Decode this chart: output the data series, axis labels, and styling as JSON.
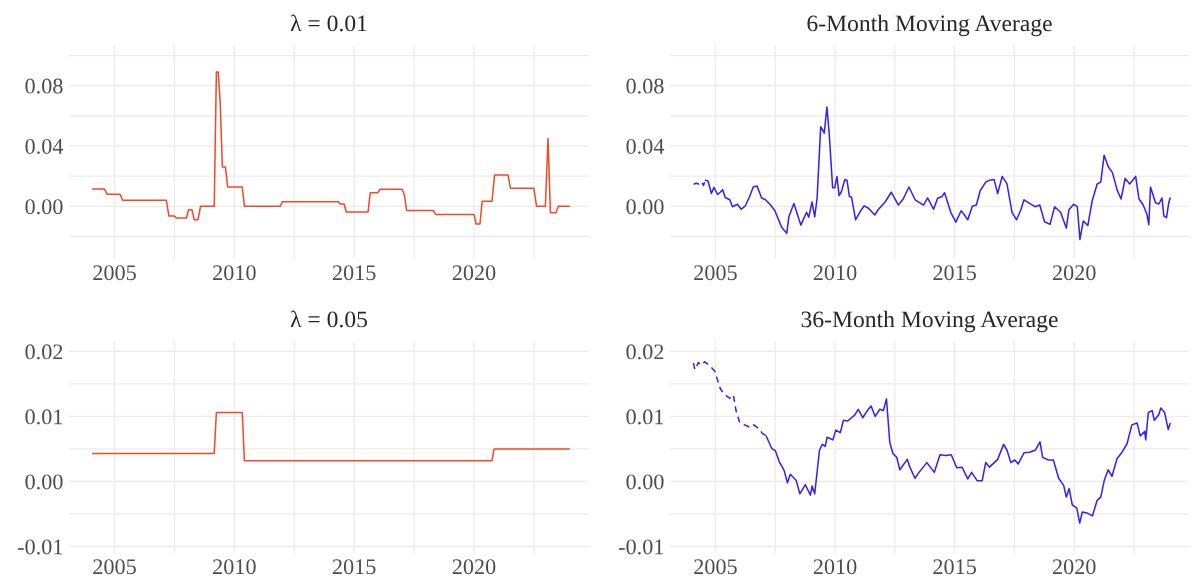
{
  "chart_data": [
    {
      "type": "line",
      "title": "λ = 0.01",
      "xlim": [
        2003.1,
        2024.8
      ],
      "ylim": [
        -0.035,
        0.107
      ],
      "grid": true,
      "xticks": [
        2005,
        {
          "value": 2007.5,
          "label": null
        },
        2010,
        {
          "value": 2012.5,
          "label": null
        },
        2015,
        {
          "value": 2017.5,
          "label": null
        },
        2020,
        {
          "value": 2022.5,
          "label": null
        }
      ],
      "yticks": [
        {
          "value": -0.02,
          "label": null
        },
        {
          "value": 0,
          "label": "0.00"
        },
        {
          "value": 0.02,
          "label": null
        },
        0.04,
        {
          "value": 0.06,
          "label": null
        },
        0.08,
        {
          "value": 0.1,
          "label": null
        }
      ],
      "series": [
        {
          "color": "#ee4b2b",
          "line_style": "solid",
          "x": [
            2004.09,
            2004.58,
            2004.69,
            2005.23,
            2005.34,
            2007.16,
            2007.27,
            2007.5,
            2007.58,
            2008.0,
            2008.09,
            2008.23,
            2008.33,
            2008.48,
            2008.59,
            2009.16,
            2009.25,
            2009.33,
            2009.41,
            2009.5,
            2009.63,
            2009.72,
            2010.33,
            2010.42,
            2011.92,
            2012.0,
            2014.34,
            2014.42,
            2014.58,
            2014.67,
            2015.58,
            2015.67,
            2015.98,
            2016.09,
            2017.0,
            2017.09,
            2017.19,
            2018.3,
            2018.41,
            2020.0,
            2020.09,
            2020.25,
            2020.34,
            2020.75,
            2020.86,
            2021.42,
            2021.52,
            2022.5,
            2022.61,
            2022.98,
            2023.09,
            2023.19,
            2023.42,
            2023.52,
            2023.98
          ],
          "values": [
            0.0115,
            0.0115,
            0.008,
            0.008,
            0.004,
            0.004,
            -0.0065,
            -0.0065,
            -0.0078,
            -0.0078,
            -0.0023,
            -0.0023,
            -0.009,
            -0.009,
            0,
            0,
            0.089,
            0.089,
            0.0685,
            0.026,
            0.026,
            0.0128,
            0.0128,
            0,
            0,
            0.003,
            0.003,
            0.0015,
            0.0015,
            -0.0038,
            -0.0038,
            0.009,
            0.009,
            0.0113,
            0.0113,
            0.008,
            -0.0028,
            -0.0028,
            -0.0055,
            -0.0055,
            -0.0118,
            -0.0118,
            0.0033,
            0.0033,
            0.0208,
            0.0208,
            0.012,
            0.012,
            0,
            0,
            0.045,
            -0.0043,
            -0.0043,
            0,
            0
          ]
        }
      ]
    },
    {
      "type": "line",
      "title": "6-Month Moving Average",
      "xlim": [
        2003.1,
        2024.8
      ],
      "ylim": [
        -0.035,
        0.107
      ],
      "grid": true,
      "xticks": [
        2005,
        {
          "value": 2007.5,
          "label": null
        },
        2010,
        {
          "value": 2012.5,
          "label": null
        },
        2015,
        {
          "value": 2017.5,
          "label": null
        },
        2020,
        {
          "value": 2022.5,
          "label": null
        }
      ],
      "yticks": [
        {
          "value": -0.02,
          "label": null
        },
        {
          "value": 0,
          "label": "0.00"
        },
        {
          "value": 0.02,
          "label": null
        },
        0.04,
        {
          "value": 0.06,
          "label": null
        },
        0.08,
        {
          "value": 0.1,
          "label": null
        }
      ],
      "series": [
        {
          "color": "#3b1ef5",
          "line_style": "solid",
          "x": [
            2004.58,
            2004.69,
            2004.83,
            2004.94,
            2005.09,
            2005.2,
            2005.3,
            2005.41,
            2005.6,
            2005.71,
            2005.92,
            2006.08,
            2006.25,
            2006.43,
            2006.58,
            2006.74,
            2006.93,
            2007.08,
            2007.27,
            2007.48,
            2007.77,
            2007.98,
            2008.07,
            2008.28,
            2008.57,
            2008.81,
            2008.9,
            2009.04,
            2009.15,
            2009.25,
            2009.4,
            2009.55,
            2009.66,
            2009.75,
            2009.9,
            2009.99,
            2010.08,
            2010.17,
            2010.27,
            2010.41,
            2010.5,
            2010.6,
            2010.69,
            2010.86,
            2011.05,
            2011.22,
            2011.41,
            2011.66,
            2011.82,
            2012.1,
            2012.35,
            2012.65,
            2012.85,
            2013.09,
            2013.35,
            2013.7,
            2013.87,
            2014.12,
            2014.29,
            2014.48,
            2014.58,
            2014.84,
            2015.05,
            2015.27,
            2015.39,
            2015.55,
            2015.74,
            2015.91,
            2016.07,
            2016.3,
            2016.46,
            2016.65,
            2016.8,
            2016.99,
            2017.19,
            2017.4,
            2017.59,
            2017.77,
            2017.9,
            2018.15,
            2018.37,
            2018.56,
            2018.76,
            2018.99,
            2019.18,
            2019.43,
            2019.67,
            2019.78,
            2019.98,
            2020.13,
            2020.24,
            2020.38,
            2020.57,
            2020.75,
            2020.96,
            2021.11,
            2021.25,
            2021.43,
            2021.6,
            2021.79,
            2021.96,
            2022.13,
            2022.32,
            2022.57,
            2022.71,
            2022.88,
            2023.04,
            2023.12,
            2023.19,
            2023.4,
            2023.54,
            2023.67,
            2023.75,
            2023.86,
            2023.95,
            2024.01
          ],
          "values": [
            0.0173,
            0.0168,
            0.0085,
            0.0125,
            0.0078,
            0.0093,
            0.011,
            0.0058,
            0.0043,
            -0.0003,
            0.0013,
            -0.002,
            0.0003,
            0.0065,
            0.0128,
            0.0135,
            0.0055,
            0.0045,
            0.0015,
            -0.0028,
            -0.014,
            -0.018,
            -0.007,
            0.0018,
            -0.0125,
            -0.004,
            -0.0073,
            0.0028,
            -0.007,
            0.0053,
            0.0528,
            0.0485,
            0.0658,
            0.0498,
            0.0123,
            0.0123,
            0.0198,
            0.007,
            0.0098,
            0.0178,
            0.0173,
            0.0065,
            0.006,
            -0.009,
            -0.0035,
            0.0003,
            -0.0015,
            -0.0058,
            -0.002,
            0.003,
            0.0093,
            0.0008,
            0.0048,
            0.0128,
            0.0043,
            0.0008,
            0.0055,
            -0.002,
            0.0053,
            0.0065,
            0.009,
            -0.004,
            -0.0105,
            -0.003,
            -0.0053,
            -0.009,
            0,
            0.0008,
            0.0103,
            0.016,
            0.0173,
            0.0178,
            0.0085,
            0.0198,
            0.0148,
            -0.004,
            -0.009,
            -0.0023,
            0.0043,
            0.0018,
            -0.0003,
            0.0008,
            -0.0103,
            -0.012,
            -0.0003,
            -0.004,
            -0.0145,
            -0.0023,
            0.0013,
            -0.0003,
            -0.022,
            -0.0098,
            -0.0128,
            0.0035,
            0.0148,
            0.016,
            0.0338,
            0.026,
            0.0223,
            0.011,
            0.0048,
            0.0185,
            0.0148,
            0.0198,
            0.0048,
            0.001,
            -0.0053,
            -0.0123,
            0.0128,
            0.0023,
            0.0015,
            0.0055,
            -0.0065,
            -0.0075,
            0.002,
            0.0055
          ]
        },
        {
          "color": "#3b1ef5",
          "line_style": "dashed",
          "x": [
            2004.08,
            2004.19,
            2004.3,
            2004.42,
            2004.5,
            2004.58
          ],
          "values": [
            0.0145,
            0.0153,
            0.0148,
            0.0163,
            0.0138,
            0.0173
          ]
        }
      ]
    },
    {
      "type": "line",
      "title": "λ = 0.05",
      "xlim": [
        2003.1,
        2024.8
      ],
      "ylim": [
        -0.011,
        0.0216
      ],
      "grid": true,
      "xticks": [
        2005,
        {
          "value": 2007.5,
          "label": null
        },
        2010,
        {
          "value": 2012.5,
          "label": null
        },
        2015,
        {
          "value": 2017.5,
          "label": null
        },
        2020,
        {
          "value": 2022.5,
          "label": null
        }
      ],
      "yticks": [
        -0.01,
        {
          "value": -0.005,
          "label": null
        },
        {
          "value": 0,
          "label": "0.00"
        },
        {
          "value": 0.005,
          "label": null
        },
        0.01,
        {
          "value": 0.015,
          "label": null
        },
        0.02
      ],
      "series": [
        {
          "color": "#ee4b2b",
          "line_style": "solid",
          "x": [
            2004.09,
            2009.16,
            2009.25,
            2010.33,
            2010.42,
            2020.75,
            2020.84,
            2023.98
          ],
          "values": [
            0.0043,
            0.0043,
            0.0106,
            0.0106,
            0.0032,
            0.0032,
            0.005,
            0.005
          ]
        }
      ]
    },
    {
      "type": "line",
      "title": "36-Month Moving Average",
      "xlim": [
        2003.1,
        2024.8
      ],
      "ylim": [
        -0.011,
        0.0216
      ],
      "grid": true,
      "xticks": [
        2005,
        {
          "value": 2007.5,
          "label": null
        },
        2010,
        {
          "value": 2012.5,
          "label": null
        },
        2015,
        {
          "value": 2017.5,
          "label": null
        },
        2020,
        {
          "value": 2022.5,
          "label": null
        }
      ],
      "yticks": [
        -0.01,
        {
          "value": -0.005,
          "label": null
        },
        {
          "value": 0,
          "label": "0.00"
        },
        {
          "value": 0.005,
          "label": null
        },
        0.01,
        {
          "value": 0.015,
          "label": null
        },
        0.02
      ],
      "series": [
        {
          "color": "#3b1ef5",
          "line_style": "dashed",
          "x": [
            2004.08,
            2004.14,
            2004.29,
            2004.39,
            2004.55,
            2004.76,
            2004.97,
            2005.2,
            2005.36,
            2005.6,
            2005.75,
            2005.86,
            2006.02,
            2006.22,
            2006.46,
            2006.61,
            2006.85,
            2006.96,
            2007.12
          ],
          "values": [
            0.0182,
            0.0172,
            0.0183,
            0.0179,
            0.0184,
            0.0178,
            0.017,
            0.0143,
            0.0134,
            0.0128,
            0.0133,
            0.0109,
            0.009,
            0.0087,
            0.0083,
            0.0087,
            0.008,
            0.0074,
            0.007
          ]
        },
        {
          "color": "#3b1ef5",
          "line_style": "solid",
          "x": [
            2007.12,
            2007.35,
            2007.51,
            2007.66,
            2007.87,
            2008.01,
            2008.13,
            2008.37,
            2008.53,
            2008.76,
            2008.97,
            2009.04,
            2009.15,
            2009.35,
            2009.47,
            2009.59,
            2009.67,
            2009.91,
            2010.03,
            2010.22,
            2010.35,
            2010.53,
            2010.82,
            2010.97,
            2011.16,
            2011.35,
            2011.51,
            2011.68,
            2011.87,
            2012.02,
            2012.15,
            2012.29,
            2012.42,
            2012.58,
            2012.71,
            2013.02,
            2013.13,
            2013.34,
            2013.51,
            2013.84,
            2014.15,
            2014.39,
            2014.63,
            2014.86,
            2015.09,
            2015.31,
            2015.55,
            2015.71,
            2015.95,
            2016.15,
            2016.3,
            2016.46,
            2016.8,
            2017.05,
            2017.19,
            2017.35,
            2017.51,
            2017.66,
            2017.9,
            2018.13,
            2018.37,
            2018.57,
            2018.68,
            2018.92,
            2019.13,
            2019.35,
            2019.56,
            2019.67,
            2019.79,
            2019.92,
            2020.11,
            2020.23,
            2020.34,
            2020.57,
            2020.76,
            2020.96,
            2021.11,
            2021.26,
            2021.42,
            2021.58,
            2021.79,
            2022.0,
            2022.21,
            2022.41,
            2022.63,
            2022.76,
            2022.95,
            2022.99,
            2023.1,
            2023.26,
            2023.35,
            2023.54,
            2023.62,
            2023.78,
            2023.93,
            2024.01
          ],
          "values": [
            0.007,
            0.0051,
            0.0047,
            0.0031,
            0.0017,
            -0.0002,
            0.0011,
            0.0002,
            -0.0019,
            -0.0005,
            -0.0021,
            -0.0007,
            -0.0019,
            0.0048,
            0.0057,
            0.0054,
            0.0068,
            0.0064,
            0.0079,
            0.0075,
            0.0094,
            0.0093,
            0.0102,
            0.0111,
            0.0098,
            0.0109,
            0.0116,
            0.01,
            0.0111,
            0.0109,
            0.0127,
            0.006,
            0.0043,
            0.0037,
            0.0018,
            0.0034,
            0.0022,
            0.0005,
            0.0014,
            0.0029,
            0.0014,
            0.0041,
            0.004,
            0.0041,
            0.0021,
            0.0022,
            0.0004,
            0.0014,
            0.0001,
            0.0001,
            0.0029,
            0.0022,
            0.0034,
            0.0057,
            0.0048,
            0.0029,
            0.0033,
            0.0027,
            0.0044,
            0.0045,
            0.0048,
            0.0061,
            0.0037,
            0.0033,
            0.0033,
            0.0005,
            -0.0006,
            -0.0024,
            -0.0011,
            -0.0036,
            -0.0041,
            -0.0064,
            -0.0047,
            -0.0049,
            -0.0053,
            -0.0029,
            -0.0024,
            0.0002,
            0.0018,
            0.0008,
            0.0035,
            0.0045,
            0.0058,
            0.0087,
            0.009,
            0.007,
            0.0077,
            0.0064,
            0.0106,
            0.0109,
            0.0094,
            0.0103,
            0.0113,
            0.0106,
            0.008,
            0.0089
          ]
        }
      ]
    }
  ]
}
